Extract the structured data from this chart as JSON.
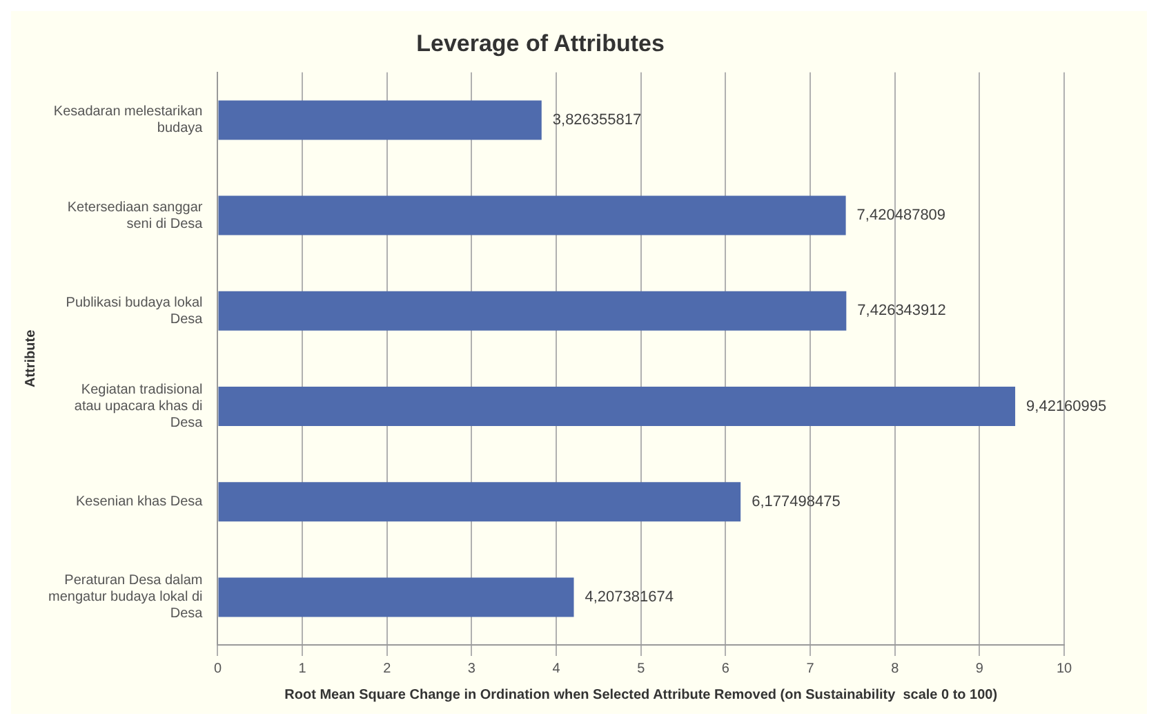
{
  "chart_data": {
    "type": "bar",
    "orientation": "horizontal",
    "title": "Leverage of Attributes",
    "xlabel": "Root Mean Square Change in Ordination when Selected Attribute Removed (on Sustainability  scale 0 to 100)",
    "ylabel": "Attribute",
    "categories": [
      "Kesadaran melestarikan budaya",
      "Ketersediaan sanggar seni di Desa",
      "Publikasi budaya lokal Desa",
      "Kegiatan tradisional atau upacara khas di Desa",
      "Kesenian khas Desa",
      "Peraturan Desa dalam mengatur budaya lokal di Desa"
    ],
    "values": [
      3.826355817,
      7.420487809,
      7.426343912,
      9.42160995,
      6.177498475,
      4.207381674
    ],
    "value_labels": [
      "3,826355817",
      "7,420487809",
      "7,426343912",
      "9,42160995",
      "6,177498475",
      "4,207381674"
    ],
    "color": "#4f6bad",
    "xlim": [
      0,
      10
    ],
    "xticks": [
      0,
      1,
      2,
      3,
      4,
      5,
      6,
      7,
      8,
      9,
      10
    ],
    "grid": "x"
  }
}
